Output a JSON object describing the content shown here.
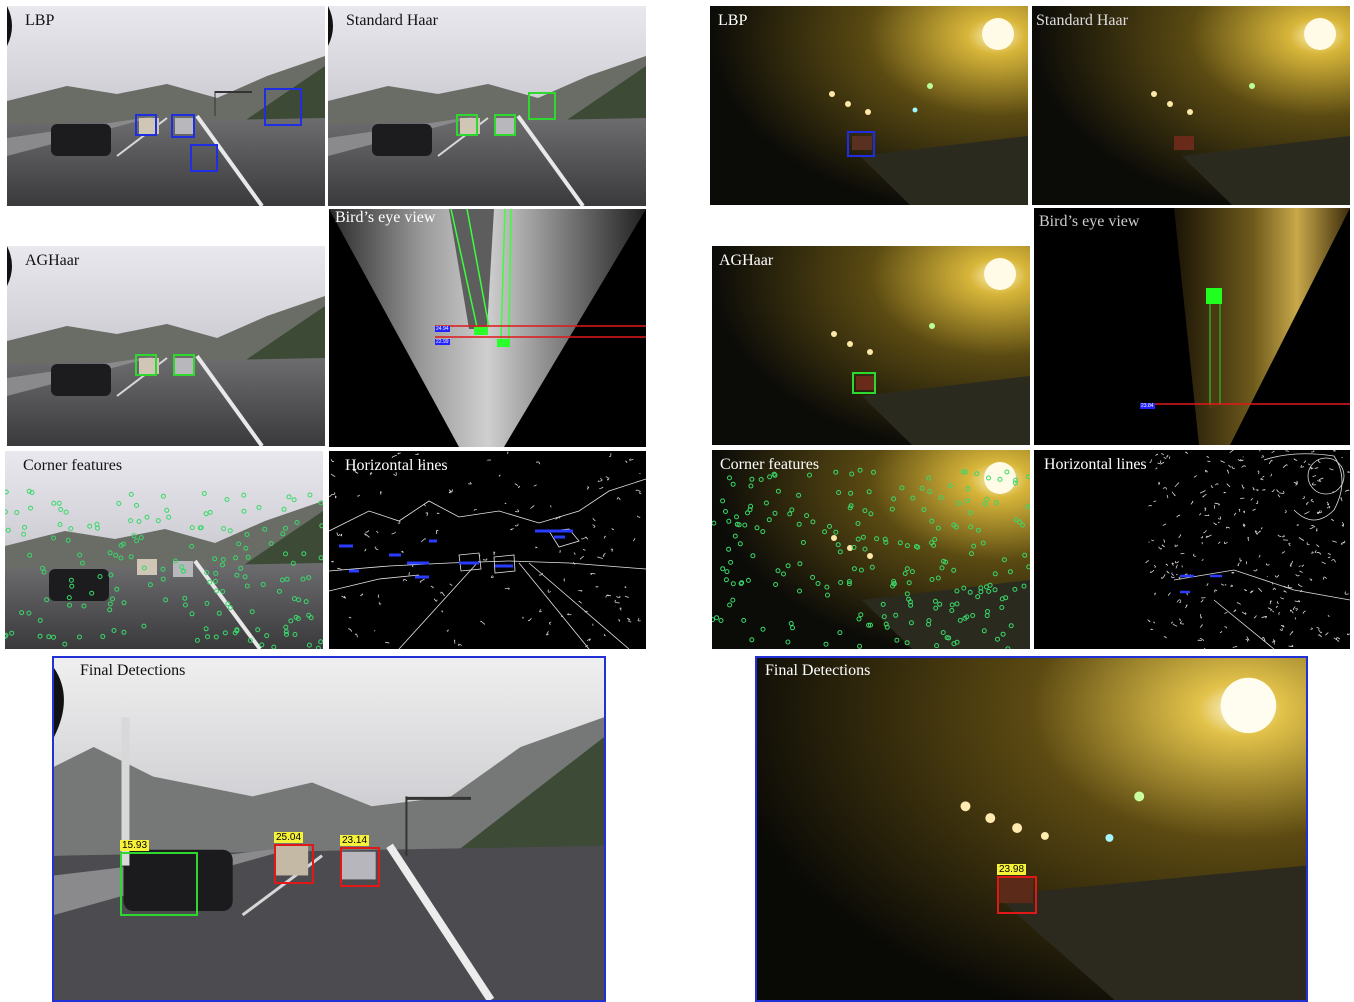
{
  "left": {
    "lbp_label": "LBP",
    "haar_label": "Standard Haar",
    "aghaar_label": "AGHaar",
    "birds_label": "Bird’s eye view",
    "corner_label": "Corner features",
    "horizontal_label": "Horizontal lines",
    "final_label": "Final Detections",
    "birds_scores": [
      "24.94",
      "22.99"
    ],
    "final_scores": [
      "15.93",
      "25.04",
      "23.14"
    ]
  },
  "right": {
    "lbp_label": "LBP",
    "haar_label": "Standard Haar",
    "aghaar_label": "AGHaar",
    "birds_label": "Bird’s eye view",
    "corner_label": "Corner features",
    "horizontal_label": "Horizontal lines",
    "final_label": "Final Detections",
    "birds_scores": [
      "23.84"
    ],
    "final_scores": [
      "23.98"
    ]
  },
  "colors": {
    "lbp_box": "#1e2ee0",
    "haar_box": "#2fd82f",
    "final_red": "#e01818",
    "final_frame": "#2230d8",
    "score_bg": "#f6f23a"
  }
}
